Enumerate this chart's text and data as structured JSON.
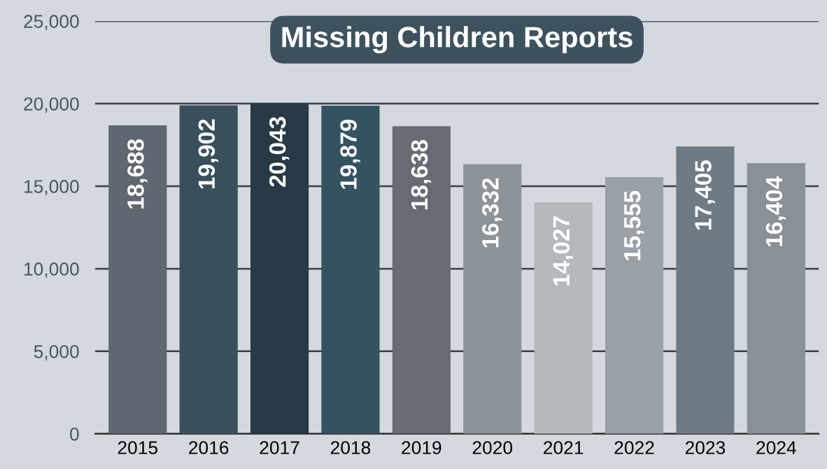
{
  "chart_data": {
    "type": "bar",
    "title": "Missing Children Reports",
    "categories": [
      "2015",
      "2016",
      "2017",
      "2018",
      "2019",
      "2020",
      "2021",
      "2022",
      "2023",
      "2024"
    ],
    "values": [
      18688,
      19902,
      20043,
      19879,
      18638,
      16332,
      14027,
      15555,
      17405,
      16404
    ],
    "colors": [
      "#5f6770",
      "#3a4f5c",
      "#273a45",
      "#355261",
      "#676b73",
      "#8d9499",
      "#b5b9bd",
      "#9aa1a6",
      "#6f7b84",
      "#8a9196"
    ],
    "value_labels": [
      "18,688",
      "19,902",
      "20,043",
      "19,879",
      "18,638",
      "16,332",
      "14,027",
      "15,555",
      "17,405",
      "16,404"
    ],
    "ylim": [
      0,
      25000
    ],
    "yticks": [
      {
        "value": 0,
        "label": "0"
      },
      {
        "value": 5000,
        "label": "5,000"
      },
      {
        "value": 10000,
        "label": "10,000"
      },
      {
        "value": 15000,
        "label": "15,000"
      },
      {
        "value": 20000,
        "label": "20,000"
      },
      {
        "value": 25000,
        "label": "25,000"
      }
    ],
    "grid": "y"
  }
}
